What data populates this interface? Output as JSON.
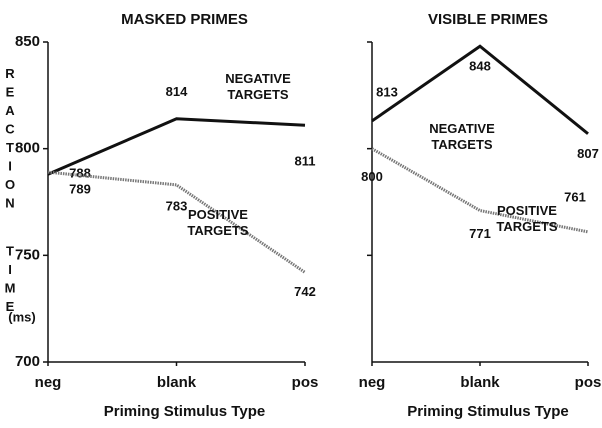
{
  "chart_data": [
    {
      "type": "line",
      "title": "MASKED PRIMES",
      "x_label": "Priming Stimulus Type",
      "y_label": "REACTION TIME",
      "y_unit": "(ms)",
      "categories": [
        "neg",
        "blank",
        "pos"
      ],
      "series": [
        {
          "name": "NEGATIVE TARGETS",
          "color": "#111111",
          "style": "solid",
          "values": [
            788,
            814,
            811
          ]
        },
        {
          "name": "POSITIVE TARGETS",
          "color": "#777777",
          "style": "dotted",
          "values": [
            789,
            783,
            742
          ]
        }
      ],
      "ylim": [
        700,
        850
      ],
      "yticks": [
        700,
        750,
        800,
        850
      ]
    },
    {
      "type": "line",
      "title": "VISIBLE PRIMES",
      "x_label": "Priming Stimulus Type",
      "categories": [
        "neg",
        "blank",
        "pos"
      ],
      "series": [
        {
          "name": "NEGATIVE TARGETS",
          "color": "#111111",
          "style": "solid",
          "values": [
            813,
            848,
            807
          ]
        },
        {
          "name": "POSITIVE TARGETS",
          "color": "#777777",
          "style": "dotted",
          "values": [
            800,
            771,
            761
          ]
        }
      ],
      "ylim": [
        700,
        850
      ],
      "yticks": [
        750,
        800,
        850
      ]
    }
  ]
}
